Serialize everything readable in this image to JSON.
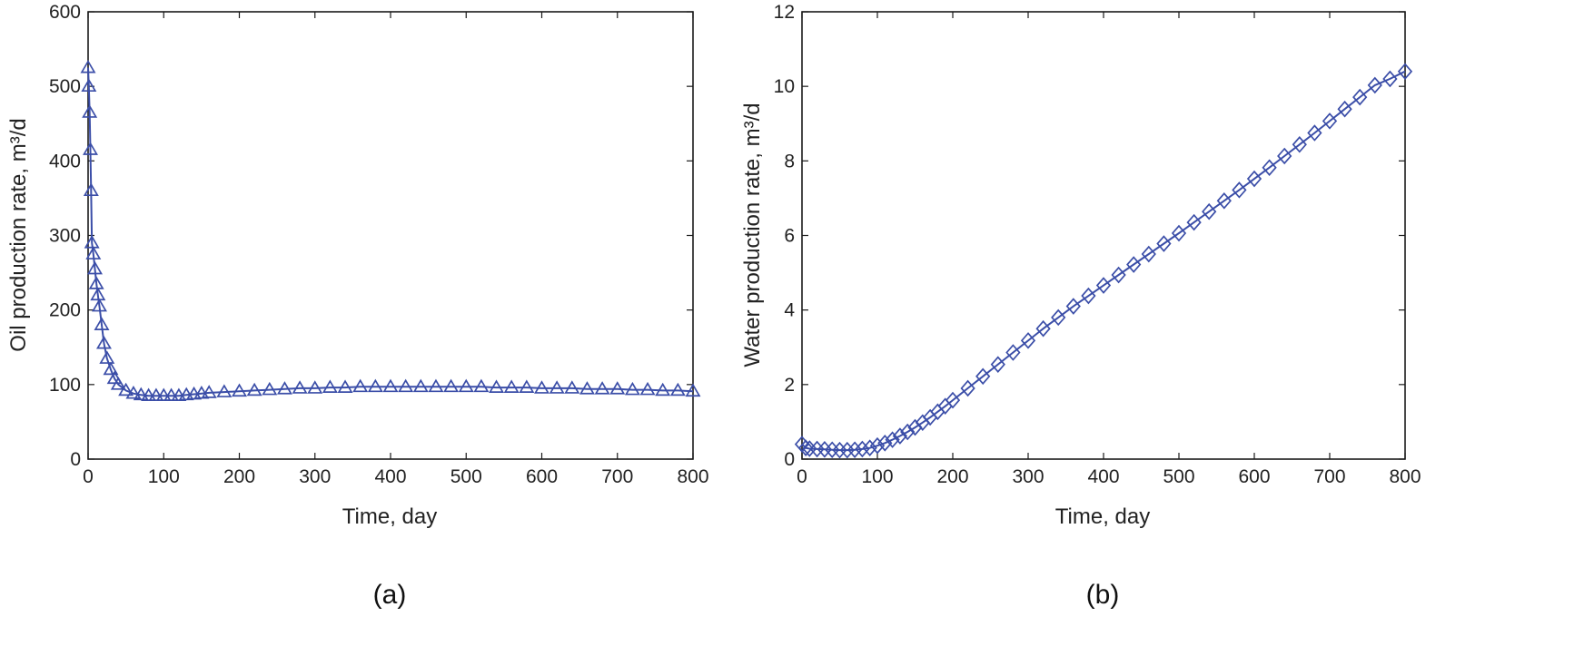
{
  "colors": {
    "series": "#3b4ea8",
    "axes": "#1a1a1a"
  },
  "chart_data": [
    {
      "type": "line",
      "panel_label": "(a)",
      "xlabel": "Time, day",
      "ylabel": "Oil production rate, m³/d",
      "xlim": [
        0,
        800
      ],
      "ylim": [
        0,
        600
      ],
      "xticks": [
        "0",
        "100",
        "200",
        "300",
        "400",
        "500",
        "600",
        "700",
        "800"
      ],
      "yticks": [
        "0",
        "100",
        "200",
        "300",
        "400",
        "500",
        "600"
      ],
      "grid": false,
      "marker": "triangle",
      "series": [
        {
          "x": [
            0,
            1,
            2,
            3,
            4,
            5,
            7,
            9,
            11,
            13,
            15,
            18,
            21,
            25,
            30,
            35,
            40,
            50,
            60,
            70,
            80,
            90,
            100,
            110,
            120,
            130,
            140,
            150,
            160,
            180,
            200,
            220,
            240,
            260,
            280,
            300,
            320,
            340,
            360,
            380,
            400,
            420,
            440,
            460,
            480,
            500,
            520,
            540,
            560,
            580,
            600,
            620,
            640,
            660,
            680,
            700,
            720,
            740,
            760,
            780,
            800
          ],
          "y": [
            525,
            500,
            465,
            415,
            360,
            290,
            275,
            255,
            235,
            220,
            205,
            180,
            155,
            135,
            120,
            108,
            100,
            92,
            88,
            86,
            85,
            85,
            85,
            85,
            85,
            86,
            87,
            88,
            89,
            90,
            91,
            92,
            93,
            94,
            95,
            95,
            96,
            96,
            97,
            97,
            97,
            97,
            97,
            97,
            97,
            97,
            97,
            96,
            96,
            96,
            95,
            95,
            95,
            94,
            94,
            94,
            93,
            93,
            92,
            92,
            91
          ]
        }
      ]
    },
    {
      "type": "line",
      "panel_label": "(b)",
      "xlabel": "Time, day",
      "ylabel": "Water production rate, m³/d",
      "xlim": [
        0,
        800
      ],
      "ylim": [
        0,
        12
      ],
      "xticks": [
        "0",
        "100",
        "200",
        "300",
        "400",
        "500",
        "600",
        "700",
        "800"
      ],
      "yticks": [
        "0",
        "2",
        "4",
        "6",
        "8",
        "10",
        "12"
      ],
      "grid": false,
      "marker": "diamond",
      "series": [
        {
          "x": [
            0,
            5,
            10,
            20,
            30,
            40,
            50,
            60,
            70,
            80,
            90,
            100,
            110,
            120,
            130,
            140,
            150,
            160,
            170,
            180,
            190,
            200,
            220,
            240,
            260,
            280,
            300,
            320,
            340,
            360,
            380,
            400,
            420,
            440,
            460,
            480,
            500,
            520,
            540,
            560,
            580,
            600,
            620,
            640,
            660,
            680,
            700,
            720,
            740,
            760,
            780,
            800
          ],
          "y": [
            0.4,
            0.3,
            0.28,
            0.27,
            0.26,
            0.25,
            0.24,
            0.24,
            0.25,
            0.27,
            0.3,
            0.36,
            0.43,
            0.52,
            0.62,
            0.73,
            0.85,
            0.98,
            1.12,
            1.27,
            1.42,
            1.58,
            1.9,
            2.22,
            2.54,
            2.86,
            3.18,
            3.5,
            3.8,
            4.1,
            4.38,
            4.66,
            4.94,
            5.22,
            5.5,
            5.78,
            6.06,
            6.35,
            6.64,
            6.93,
            7.22,
            7.52,
            7.82,
            8.13,
            8.44,
            8.75,
            9.07,
            9.39,
            9.71,
            10.03,
            10.2,
            10.4
          ]
        }
      ]
    }
  ]
}
